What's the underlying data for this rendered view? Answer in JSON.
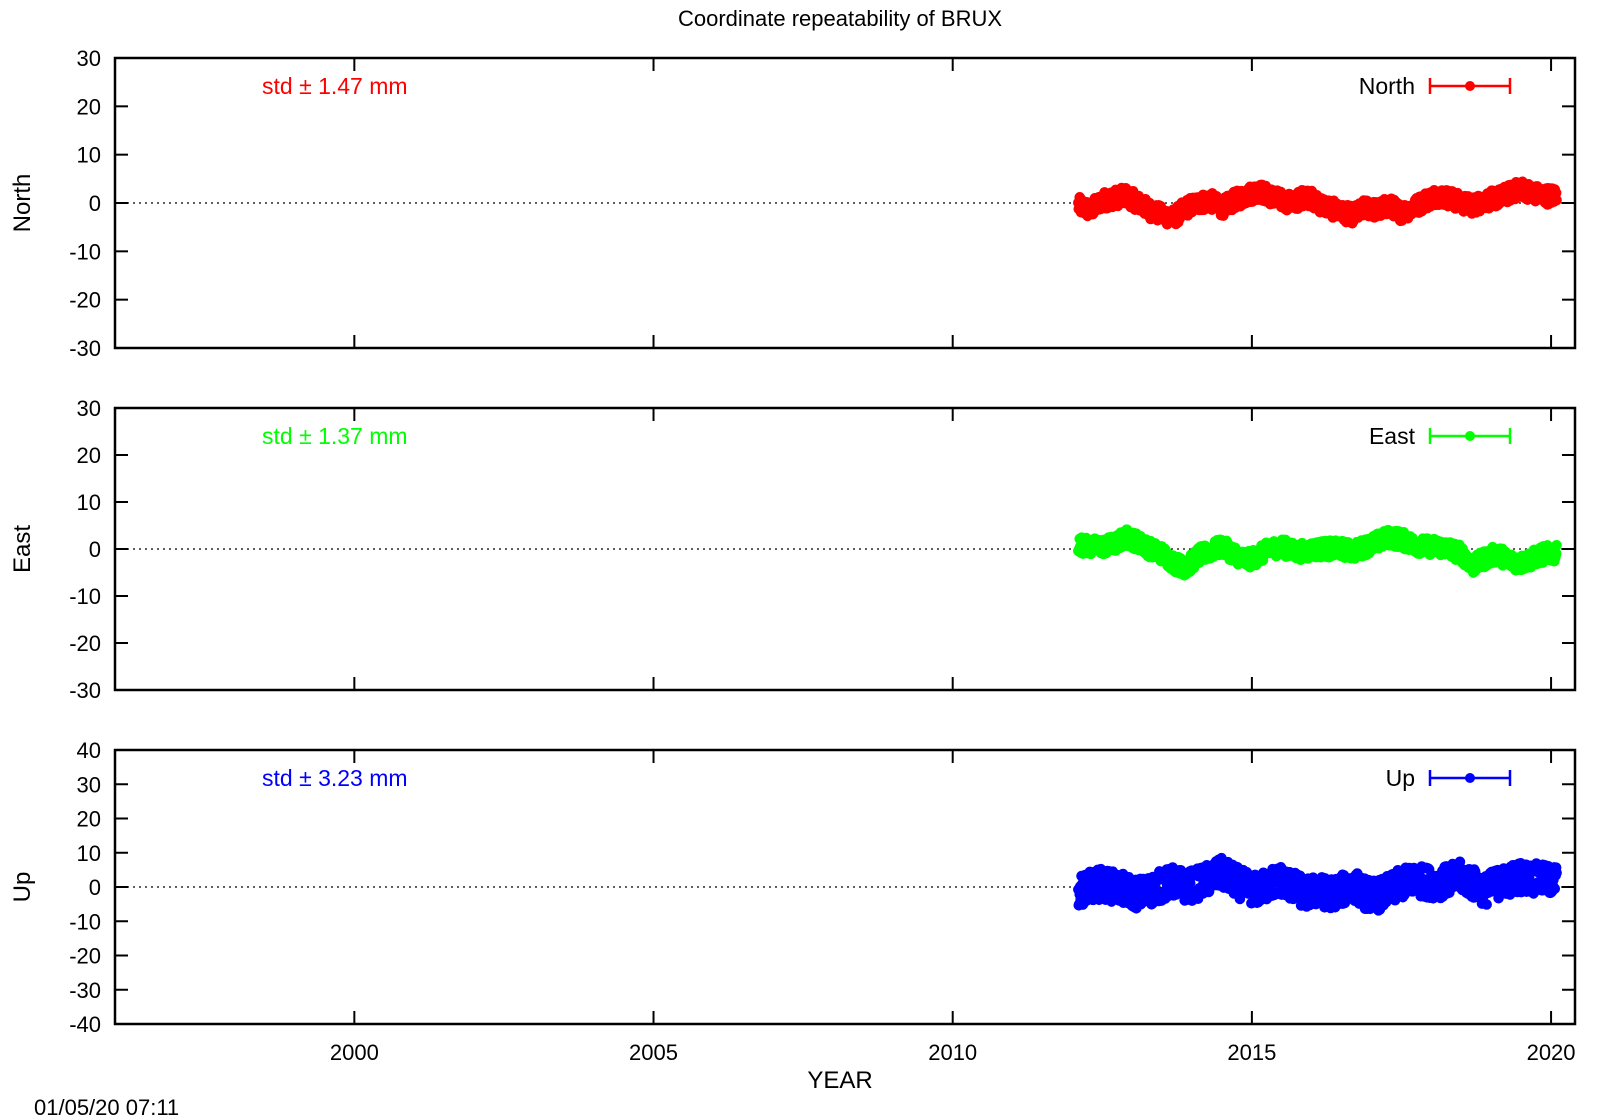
{
  "chart_data": {
    "type": "scatter",
    "title": "Coordinate repeatability of BRUX",
    "xlabel": "YEAR",
    "xlim": [
      1996,
      2020.4
    ],
    "x_ticks": [
      2000,
      2005,
      2010,
      2015,
      2020
    ],
    "timestamp": "01/05/20 07:11",
    "panels": [
      {
        "key": "north",
        "ylabel": "North",
        "ylim": [
          -30,
          30
        ],
        "y_ticks": [
          -30,
          -20,
          -10,
          0,
          10,
          20,
          30
        ],
        "color": "#ff0000",
        "std_label": "std ± 1.47 mm",
        "legend": "North",
        "series": {
          "name": "North",
          "x": [
            2012.1,
            2012.3,
            2012.5,
            2012.7,
            2012.9,
            2013.1,
            2013.3,
            2013.5,
            2013.7,
            2013.9,
            2014.1,
            2014.3,
            2014.5,
            2014.7,
            2014.9,
            2015.1,
            2015.3,
            2015.5,
            2015.7,
            2015.9,
            2016.1,
            2016.3,
            2016.5,
            2016.7,
            2016.9,
            2017.1,
            2017.3,
            2017.5,
            2017.7,
            2017.9,
            2018.1,
            2018.3,
            2018.5,
            2018.7,
            2018.9,
            2019.1,
            2019.3,
            2019.5,
            2019.7,
            2019.9
          ],
          "y": [
            -0.5,
            -1.5,
            0.5,
            1.0,
            1.5,
            0.0,
            -1.5,
            -2.5,
            -3.0,
            -1.0,
            0.0,
            0.5,
            -1.0,
            0.5,
            1.5,
            2.5,
            1.5,
            0.5,
            0.0,
            1.5,
            0.0,
            -1.0,
            -2.0,
            -2.5,
            -1.0,
            -1.5,
            -0.5,
            -2.0,
            -1.0,
            0.5,
            1.5,
            1.0,
            0.0,
            -0.5,
            0.5,
            1.0,
            2.0,
            3.0,
            2.0,
            1.5
          ]
        }
      },
      {
        "key": "east",
        "ylabel": "East",
        "ylim": [
          -30,
          30
        ],
        "y_ticks": [
          -30,
          -20,
          -10,
          0,
          10,
          20,
          30
        ],
        "color": "#00ff00",
        "std_label": "std ± 1.37 mm",
        "legend": "East",
        "series": {
          "name": "East",
          "x": [
            2012.1,
            2012.3,
            2012.5,
            2012.7,
            2012.9,
            2013.1,
            2013.3,
            2013.5,
            2013.7,
            2013.9,
            2014.1,
            2014.3,
            2014.5,
            2014.7,
            2014.9,
            2015.1,
            2015.3,
            2015.5,
            2015.7,
            2015.9,
            2016.1,
            2016.3,
            2016.5,
            2016.7,
            2016.9,
            2017.1,
            2017.3,
            2017.5,
            2017.7,
            2017.9,
            2018.1,
            2018.3,
            2018.5,
            2018.7,
            2018.9,
            2019.1,
            2019.3,
            2019.5,
            2019.7,
            2019.9
          ],
          "y": [
            1.0,
            0.5,
            0.5,
            1.0,
            2.5,
            1.5,
            0.0,
            -1.0,
            -3.0,
            -4.0,
            -1.5,
            -0.5,
            0.5,
            -1.0,
            -2.5,
            -1.5,
            0.0,
            0.5,
            -0.5,
            -0.5,
            0.0,
            0.0,
            0.0,
            -0.5,
            0.5,
            1.5,
            2.5,
            2.0,
            1.0,
            0.5,
            0.5,
            0.0,
            -1.0,
            -3.5,
            -2.0,
            -1.0,
            -2.5,
            -3.0,
            -2.0,
            -1.0
          ]
        }
      },
      {
        "key": "up",
        "ylabel": "Up",
        "ylim": [
          -40,
          40
        ],
        "y_ticks": [
          -40,
          -30,
          -20,
          -10,
          0,
          10,
          20,
          30,
          40
        ],
        "color": "#0000ff",
        "std_label": "std ± 3.23 mm",
        "legend": "Up",
        "series": {
          "name": "Up",
          "x": [
            2012.1,
            2012.3,
            2012.5,
            2012.7,
            2012.9,
            2013.1,
            2013.3,
            2013.5,
            2013.7,
            2013.9,
            2014.1,
            2014.3,
            2014.5,
            2014.7,
            2014.9,
            2015.1,
            2015.3,
            2015.5,
            2015.7,
            2015.9,
            2016.1,
            2016.3,
            2016.5,
            2016.7,
            2016.9,
            2017.1,
            2017.3,
            2017.5,
            2017.7,
            2017.9,
            2018.1,
            2018.3,
            2018.5,
            2018.7,
            2018.9,
            2019.1,
            2019.3,
            2019.5,
            2019.7,
            2019.9
          ],
          "y": [
            -1.0,
            0.0,
            1.0,
            0.0,
            -1.0,
            -2.0,
            -1.0,
            0.5,
            1.5,
            0.0,
            1.0,
            2.5,
            4.0,
            2.0,
            0.0,
            -1.0,
            1.0,
            2.0,
            0.0,
            -2.0,
            -1.0,
            -2.0,
            -1.0,
            0.5,
            -2.0,
            -2.5,
            -1.0,
            1.0,
            2.0,
            1.5,
            1.0,
            2.0,
            3.0,
            1.0,
            -1.0,
            1.0,
            2.0,
            3.0,
            2.5,
            2.0
          ]
        }
      }
    ]
  }
}
